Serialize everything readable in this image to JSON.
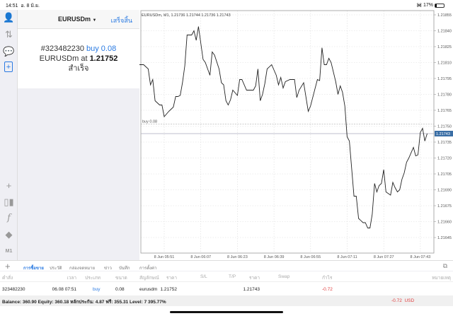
{
  "status_bar": {
    "time": "14:51",
    "date": "อ. 8 มิ.ย.",
    "battery": "17%",
    "battery_level": 0.17
  },
  "sidebar": {
    "top_icons": [
      "account-icon",
      "trade-arrows-icon",
      "chat-icon",
      "new-order-icon"
    ],
    "bottom_icons": [
      "crosshair-icon",
      "candlestick-icon",
      "indicator-f-icon",
      "objects-icon"
    ],
    "timeframe": "M1"
  },
  "order_panel": {
    "symbol": "EURUSDm",
    "done_label": "เสร็จสิ้น",
    "ticket": "#323482230",
    "action": "buy 0.08",
    "symbol_at": "EURUSDm at",
    "price": "1.21752",
    "result": "สำเร็จ"
  },
  "chart_data": {
    "type": "line",
    "title": "EURUSDm, M1, 1.21736 1.21744 1.21736 1.21743",
    "ylim": [
      1.2164,
      1.2186
    ],
    "yticks": [
      "1.21855",
      "1.21840",
      "1.21825",
      "1.21810",
      "1.21795",
      "1.21780",
      "1.21765",
      "1.21750",
      "1.21735",
      "1.21720",
      "1.21705",
      "1.21690",
      "1.21675",
      "1.21660",
      "1.21645"
    ],
    "xticks": [
      "8 Jun 05:51",
      "8 Jun 06:07",
      "8 Jun 06:23",
      "8 Jun 06:39",
      "8 Jun 06:55",
      "8 Jun 07:11",
      "8 Jun 07:27",
      "8 Jun 07:43"
    ],
    "grid": true,
    "current_price": "1.21743",
    "current_price_value": 1.21743,
    "buy_line": {
      "label": "buy 0.08",
      "price": 1.21752
    },
    "series": [
      {
        "points": [
          [
            "05:40",
            1.21808
          ],
          [
            "05:42",
            1.21808
          ],
          [
            "05:44",
            1.21804
          ],
          [
            "05:45",
            1.21789
          ],
          [
            "05:46",
            1.21794
          ],
          [
            "05:47",
            1.21774
          ],
          [
            "05:48",
            1.21772
          ],
          [
            "05:49",
            1.2177
          ],
          [
            "05:50",
            1.2177
          ],
          [
            "05:51",
            1.21759
          ],
          [
            "05:53",
            1.21764
          ],
          [
            "05:54",
            1.21766
          ],
          [
            "05:55",
            1.21768
          ],
          [
            "05:56",
            1.21778
          ],
          [
            "05:57",
            1.21778
          ],
          [
            "05:58",
            1.21779
          ],
          [
            "05:59",
            1.21791
          ],
          [
            "06:00",
            1.21807
          ],
          [
            "06:01",
            1.21836
          ],
          [
            "06:02",
            1.21836
          ],
          [
            "06:03",
            1.21836
          ],
          [
            "06:04",
            1.2184
          ],
          [
            "06:05",
            1.21831
          ],
          [
            "06:06",
            1.21844
          ],
          [
            "06:08",
            1.21813
          ],
          [
            "06:09",
            1.2181
          ],
          [
            "06:11",
            1.21798
          ],
          [
            "06:12",
            1.2182
          ],
          [
            "06:13",
            1.21817
          ],
          [
            "06:15",
            1.21804
          ],
          [
            "06:16",
            1.21791
          ],
          [
            "06:17",
            1.21789
          ],
          [
            "06:18",
            1.21774
          ],
          [
            "06:19",
            1.2177
          ],
          [
            "06:20",
            1.21775
          ],
          [
            "06:21",
            1.21784
          ],
          [
            "06:23",
            1.21779
          ],
          [
            "06:24",
            1.21794
          ],
          [
            "06:25",
            1.21794
          ],
          [
            "06:27",
            1.21784
          ],
          [
            "06:28",
            1.21784
          ],
          [
            "06:30",
            1.21784
          ],
          [
            "06:31",
            1.21788
          ],
          [
            "06:32",
            1.21804
          ],
          [
            "06:33",
            1.21774
          ],
          [
            "06:34",
            1.2178
          ],
          [
            "06:35",
            1.2179
          ],
          [
            "06:36",
            1.21804
          ],
          [
            "06:38",
            1.21808
          ],
          [
            "06:40",
            1.21798
          ],
          [
            "06:41",
            1.21789
          ],
          [
            "06:42",
            1.21796
          ],
          [
            "06:43",
            1.21786
          ],
          [
            "06:44",
            1.21792
          ],
          [
            "06:46",
            1.21794
          ],
          [
            "06:48",
            1.21794
          ],
          [
            "06:49",
            1.21777
          ],
          [
            "06:50",
            1.21784
          ],
          [
            "06:52",
            1.21791
          ],
          [
            "06:54",
            1.21764
          ],
          [
            "06:55",
            1.21769
          ],
          [
            "06:58",
            1.21794
          ],
          [
            "06:59",
            1.21793
          ],
          [
            "07:00",
            1.21824
          ],
          [
            "07:01",
            1.21808
          ],
          [
            "07:02",
            1.21808
          ],
          [
            "07:03",
            1.21814
          ],
          [
            "07:04",
            1.2181
          ],
          [
            "07:06",
            1.21792
          ],
          [
            "07:07",
            1.2178
          ],
          [
            "07:08",
            1.21788
          ],
          [
            "07:09",
            1.21782
          ],
          [
            "07:10",
            1.21769
          ],
          [
            "07:11",
            1.2174
          ],
          [
            "07:12",
            1.21736
          ],
          [
            "07:14",
            1.21684
          ],
          [
            "07:15",
            1.21684
          ],
          [
            "07:16",
            1.21663
          ],
          [
            "07:18",
            1.21659
          ],
          [
            "07:19",
            1.21659
          ],
          [
            "07:20",
            1.21654
          ],
          [
            "07:21",
            1.21654
          ],
          [
            "07:22",
            1.21667
          ],
          [
            "07:23",
            1.21696
          ],
          [
            "07:24",
            1.21688
          ],
          [
            "07:25",
            1.21694
          ],
          [
            "07:26",
            1.21696
          ],
          [
            "07:27",
            1.21709
          ],
          [
            "07:28",
            1.21688
          ],
          [
            "07:30",
            1.21685
          ],
          [
            "07:31",
            1.21697
          ],
          [
            "07:32",
            1.21692
          ],
          [
            "07:33",
            1.21688
          ],
          [
            "07:34",
            1.2169
          ],
          [
            "07:35",
            1.217
          ],
          [
            "07:36",
            1.21706
          ],
          [
            "07:37",
            1.21716
          ],
          [
            "07:38",
            1.2172
          ],
          [
            "07:40",
            1.2173
          ],
          [
            "07:41",
            1.21722
          ],
          [
            "07:42",
            1.21723
          ],
          [
            "07:43",
            1.21744
          ],
          [
            "07:44",
            1.21748
          ],
          [
            "07:45",
            1.21736
          ],
          [
            "07:46",
            1.21743
          ]
        ]
      }
    ]
  },
  "toolbar": {
    "add": "+",
    "tabs": [
      "การซื้อขาย",
      "ประวัติ",
      "กล่องจดหมาย",
      "ข่าว",
      "บันทึก",
      "การตั้งค่า"
    ],
    "active_tab": 0
  },
  "table": {
    "headers": [
      "คำสั่ง",
      "เวลา",
      "ประเภท",
      "ขนาด",
      "สัญลักษณ์",
      "ราคา",
      "S/L",
      "T/P",
      "ราคา",
      "Swap",
      "กำไร",
      "หมายเหตุ"
    ],
    "rows": [
      {
        "ticket": "323482230",
        "time": "06.08 07:51",
        "type": "buy",
        "size": "0.08",
        "symbol": "eurusdm",
        "open_price": "1.21752",
        "sl": "",
        "tp": "",
        "price": "1.21743",
        "swap": "",
        "profit": "-0.72",
        "comment": ""
      }
    ],
    "summary": "Balance: 360.90 Equity: 360.18 หลักประกัน: 4.87 ฟรี: 355.31 Level: 7 395.77%",
    "total_profit": "-0.72",
    "currency": "USD"
  },
  "colors": {
    "accent": "#2a7ae2",
    "loss": "#e04040",
    "price_tag": "#3a6ea5"
  }
}
